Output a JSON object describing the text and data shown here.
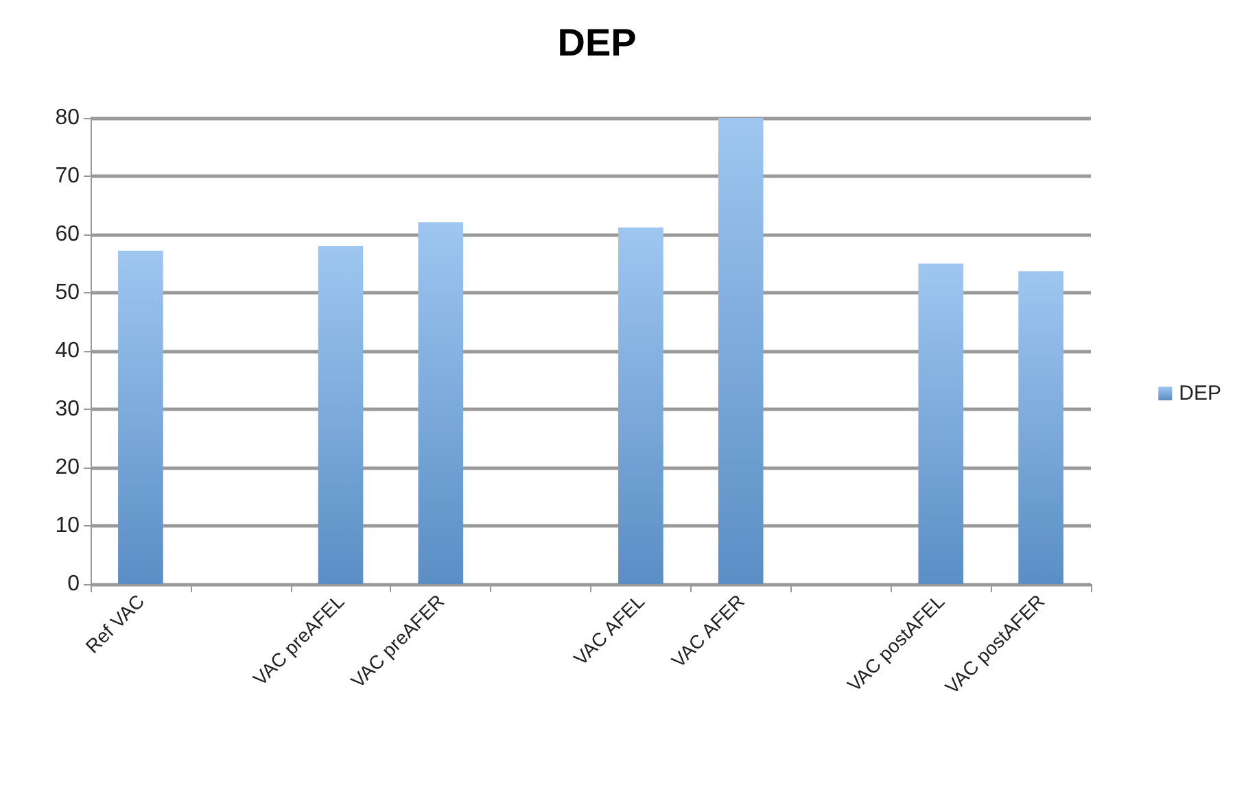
{
  "chart_data": {
    "type": "bar",
    "title": "DEP",
    "categories": [
      "Ref VAC",
      null,
      "VAC preAFEL",
      "VAC preAFER",
      null,
      "VAC AFEL",
      "VAC AFER",
      null,
      "VAC postAFEL",
      "VAC postAFER"
    ],
    "series": [
      {
        "name": "DEP",
        "color": "#6aa7e8",
        "values": [
          57.2,
          null,
          58,
          62.1,
          null,
          61.2,
          80,
          null,
          55,
          53.7
        ]
      }
    ],
    "ylim": [
      0,
      80
    ],
    "yticks": [
      0,
      10,
      20,
      30,
      40,
      50,
      60,
      70,
      80
    ],
    "grid": "y",
    "legend": "right"
  }
}
